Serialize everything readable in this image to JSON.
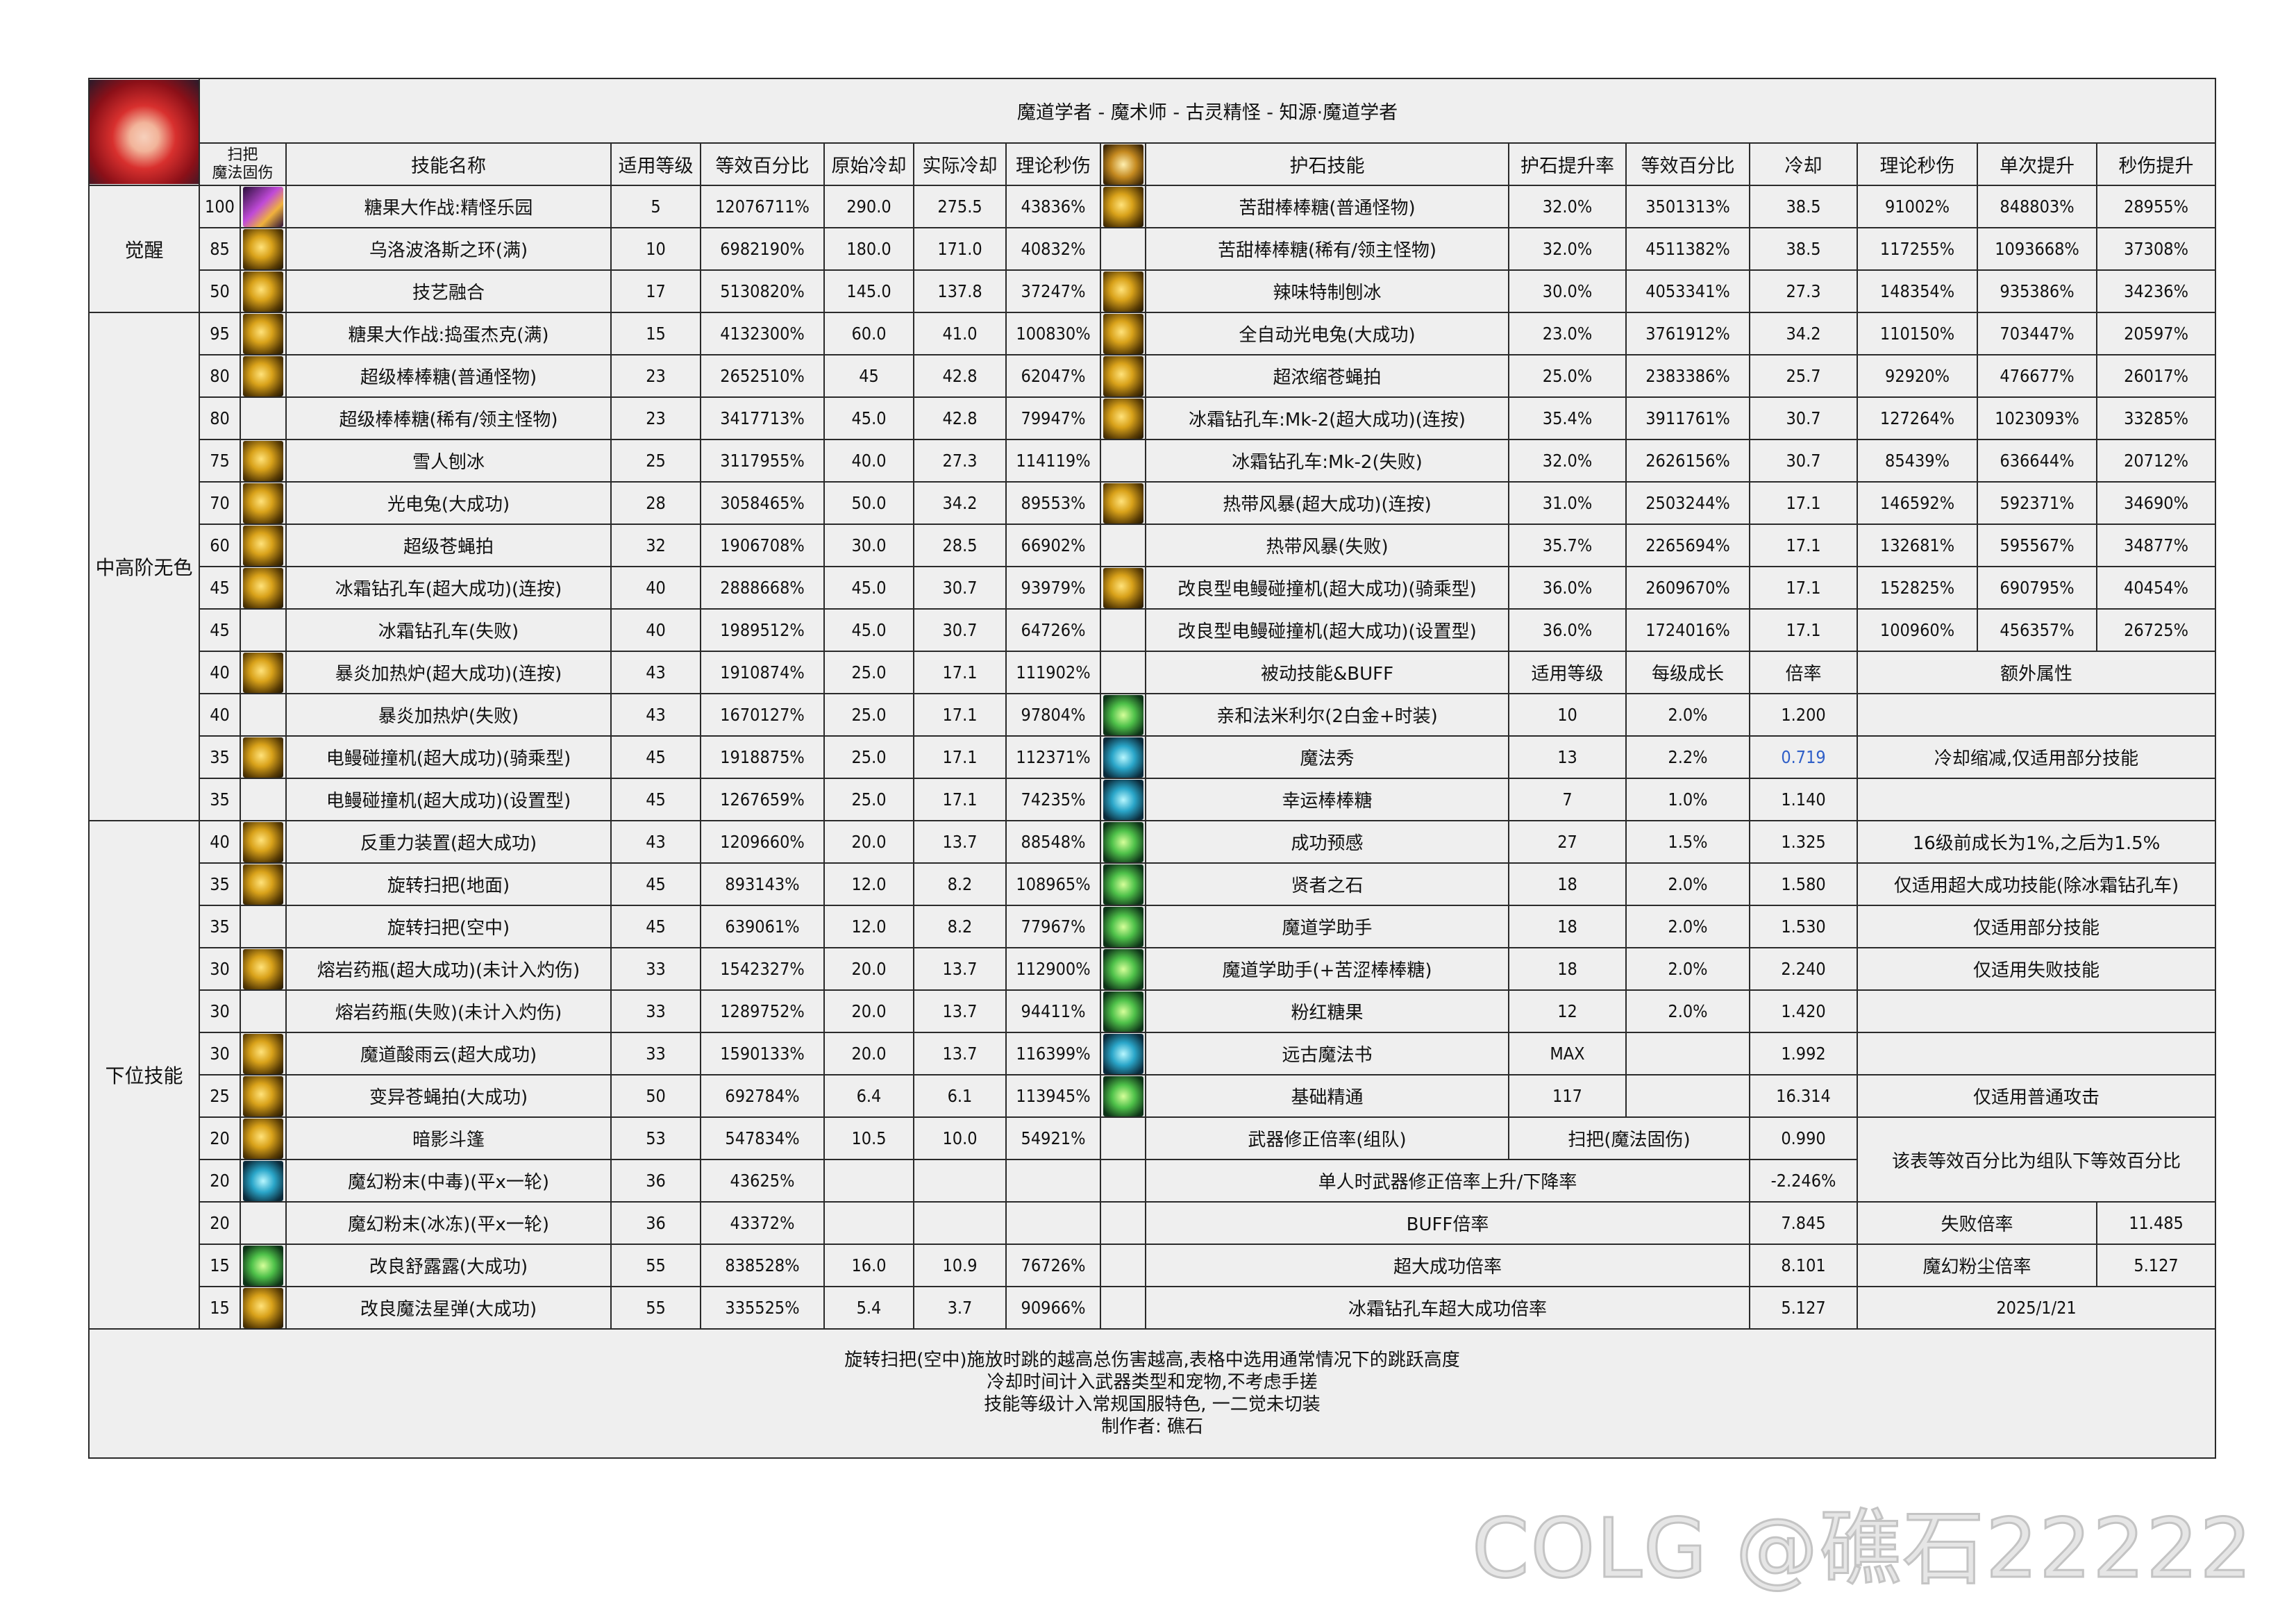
{
  "title": "魔道学者 - 魔术师 - 古灵精怪 - 知源·魔道学者",
  "headers": {
    "broom": "扫把\n魔法固伤",
    "skill_name": "技能名称",
    "level": "适用等级",
    "equiv_pct": "等效百分比",
    "orig_cd": "原始冷却",
    "actual_cd": "实际冷却",
    "theory_dps": "理论秒伤",
    "talisman_skill": "护石技能",
    "talisman_rate": "护石提升率",
    "talisman_pct": "等效百分比",
    "talisman_cd": "冷却",
    "talisman_dps": "理论秒伤",
    "single_up": "单次提升",
    "dps_up": "秒伤提升"
  },
  "groups": [
    {
      "label": "觉醒",
      "rows": 3
    },
    {
      "label": "中高阶无色",
      "rows": 12
    },
    {
      "label": "下位技能",
      "rows": 12
    }
  ],
  "skills": [
    {
      "broom": "100",
      "icon": "purple",
      "name": "糖果大作战:精怪乐园",
      "level": "5",
      "pct": "12076711%",
      "orig_cd": "290.0",
      "cd": "275.5",
      "dps": "43836%"
    },
    {
      "broom": "85",
      "icon": "gold",
      "name": "乌洛波洛斯之环(满)",
      "level": "10",
      "pct": "6982190%",
      "orig_cd": "180.0",
      "cd": "171.0",
      "dps": "40832%"
    },
    {
      "broom": "50",
      "icon": "gold",
      "name": "技艺融合",
      "level": "17",
      "pct": "5130820%",
      "orig_cd": "145.0",
      "cd": "137.8",
      "dps": "37247%"
    },
    {
      "broom": "95",
      "icon": "gold",
      "name": "糖果大作战:捣蛋杰克(满)",
      "level": "15",
      "pct": "4132300%",
      "orig_cd": "60.0",
      "cd": "41.0",
      "dps": "100830%"
    },
    {
      "broom": "80",
      "icon": "gold",
      "name": "超级棒棒糖(普通怪物)",
      "level": "23",
      "pct": "2652510%",
      "orig_cd": "45",
      "cd": "42.8",
      "dps": "62047%"
    },
    {
      "broom": "80",
      "icon": "",
      "name": "超级棒棒糖(稀有/领主怪物)",
      "level": "23",
      "pct": "3417713%",
      "orig_cd": "45.0",
      "cd": "42.8",
      "dps": "79947%"
    },
    {
      "broom": "75",
      "icon": "gold",
      "name": "雪人刨冰",
      "level": "25",
      "pct": "3117955%",
      "orig_cd": "40.0",
      "cd": "27.3",
      "dps": "114119%"
    },
    {
      "broom": "70",
      "icon": "gold",
      "name": "光电兔(大成功)",
      "level": "28",
      "pct": "3058465%",
      "orig_cd": "50.0",
      "cd": "34.2",
      "dps": "89553%"
    },
    {
      "broom": "60",
      "icon": "gold",
      "name": "超级苍蝇拍",
      "level": "32",
      "pct": "1906708%",
      "orig_cd": "30.0",
      "cd": "28.5",
      "dps": "66902%"
    },
    {
      "broom": "45",
      "icon": "gold",
      "name": "冰霜钻孔车(超大成功)(连按)",
      "level": "40",
      "pct": "2888668%",
      "orig_cd": "45.0",
      "cd": "30.7",
      "dps": "93979%"
    },
    {
      "broom": "45",
      "icon": "",
      "name": "冰霜钻孔车(失败)",
      "level": "40",
      "pct": "1989512%",
      "orig_cd": "45.0",
      "cd": "30.7",
      "dps": "64726%"
    },
    {
      "broom": "40",
      "icon": "gold",
      "name": "暴炎加热炉(超大成功)(连按)",
      "level": "43",
      "pct": "1910874%",
      "orig_cd": "25.0",
      "cd": "17.1",
      "dps": "111902%"
    },
    {
      "broom": "40",
      "icon": "",
      "name": "暴炎加热炉(失败)",
      "level": "43",
      "pct": "1670127%",
      "orig_cd": "25.0",
      "cd": "17.1",
      "dps": "97804%"
    },
    {
      "broom": "35",
      "icon": "gold",
      "name": "电鳗碰撞机(超大成功)(骑乘型)",
      "level": "45",
      "pct": "1918875%",
      "orig_cd": "25.0",
      "cd": "17.1",
      "dps": "112371%"
    },
    {
      "broom": "35",
      "icon": "",
      "name": "电鳗碰撞机(超大成功)(设置型)",
      "level": "45",
      "pct": "1267659%",
      "orig_cd": "25.0",
      "cd": "17.1",
      "dps": "74235%"
    },
    {
      "broom": "40",
      "icon": "gold",
      "name": "反重力装置(超大成功)",
      "level": "43",
      "pct": "1209660%",
      "orig_cd": "20.0",
      "cd": "13.7",
      "dps": "88548%"
    },
    {
      "broom": "35",
      "icon": "gold",
      "name": "旋转扫把(地面)",
      "level": "45",
      "pct": "893143%",
      "orig_cd": "12.0",
      "cd": "8.2",
      "dps": "108965%"
    },
    {
      "broom": "35",
      "icon": "",
      "name": "旋转扫把(空中)",
      "level": "45",
      "pct": "639061%",
      "orig_cd": "12.0",
      "cd": "8.2",
      "dps": "77967%"
    },
    {
      "broom": "30",
      "icon": "gold",
      "name": "熔岩药瓶(超大成功)(未计入灼伤)",
      "level": "33",
      "pct": "1542327%",
      "orig_cd": "20.0",
      "cd": "13.7",
      "dps": "112900%"
    },
    {
      "broom": "30",
      "icon": "",
      "name": "熔岩药瓶(失败)(未计入灼伤)",
      "level": "33",
      "pct": "1289752%",
      "orig_cd": "20.0",
      "cd": "13.7",
      "dps": "94411%"
    },
    {
      "broom": "30",
      "icon": "gold",
      "name": "魔道酸雨云(超大成功)",
      "level": "33",
      "pct": "1590133%",
      "orig_cd": "20.0",
      "cd": "13.7",
      "dps": "116399%"
    },
    {
      "broom": "25",
      "icon": "gold",
      "name": "变异苍蝇拍(大成功)",
      "level": "50",
      "pct": "692784%",
      "orig_cd": "6.4",
      "cd": "6.1",
      "dps": "113945%"
    },
    {
      "broom": "20",
      "icon": "gold",
      "name": "暗影斗篷",
      "level": "53",
      "pct": "547834%",
      "orig_cd": "10.5",
      "cd": "10.0",
      "dps": "54921%"
    },
    {
      "broom": "20",
      "icon": "teal",
      "name": "魔幻粉末(中毒)(平x一轮)",
      "level": "36",
      "pct": "43625%",
      "orig_cd": "",
      "cd": "",
      "dps": ""
    },
    {
      "broom": "20",
      "icon": "",
      "name": "魔幻粉末(冰冻)(平x一轮)",
      "level": "36",
      "pct": "43372%",
      "orig_cd": "",
      "cd": "",
      "dps": ""
    },
    {
      "broom": "15",
      "icon": "green",
      "name": "改良舒露露(大成功)",
      "level": "55",
      "pct": "838528%",
      "orig_cd": "16.0",
      "cd": "10.9",
      "dps": "76726%"
    },
    {
      "broom": "15",
      "icon": "gold",
      "name": "改良魔法星弹(大成功)",
      "level": "55",
      "pct": "335525%",
      "orig_cd": "5.4",
      "cd": "3.7",
      "dps": "90966%"
    }
  ],
  "talismans": [
    {
      "icon": "gold",
      "name": "苦甜棒棒糖(普通怪物)",
      "rate": "32.0%",
      "pct": "3501313%",
      "cd": "38.5",
      "dps": "91002%",
      "single": "848803%",
      "dps_up": "28955%"
    },
    {
      "icon": "",
      "name": "苦甜棒棒糖(稀有/领主怪物)",
      "rate": "32.0%",
      "pct": "4511382%",
      "cd": "38.5",
      "dps": "117255%",
      "single": "1093668%",
      "dps_up": "37308%"
    },
    {
      "icon": "gold",
      "name": "辣味特制刨冰",
      "rate": "30.0%",
      "pct": "4053341%",
      "cd": "27.3",
      "dps": "148354%",
      "single": "935386%",
      "dps_up": "34236%"
    },
    {
      "icon": "gold",
      "name": "全自动光电兔(大成功)",
      "rate": "23.0%",
      "pct": "3761912%",
      "cd": "34.2",
      "dps": "110150%",
      "single": "703447%",
      "dps_up": "20597%"
    },
    {
      "icon": "gold",
      "name": "超浓缩苍蝇拍",
      "rate": "25.0%",
      "pct": "2383386%",
      "cd": "25.7",
      "dps": "92920%",
      "single": "476677%",
      "dps_up": "26017%"
    },
    {
      "icon": "gold",
      "name": "冰霜钻孔车:Mk-2(超大成功)(连按)",
      "rate": "35.4%",
      "pct": "3911761%",
      "cd": "30.7",
      "dps": "127264%",
      "single": "1023093%",
      "dps_up": "33285%"
    },
    {
      "icon": "",
      "name": "冰霜钻孔车:Mk-2(失败)",
      "rate": "32.0%",
      "pct": "2626156%",
      "cd": "30.7",
      "dps": "85439%",
      "single": "636644%",
      "dps_up": "20712%"
    },
    {
      "icon": "gold",
      "name": "热带风暴(超大成功)(连按)",
      "rate": "31.0%",
      "pct": "2503244%",
      "cd": "17.1",
      "dps": "146592%",
      "single": "592371%",
      "dps_up": "34690%"
    },
    {
      "icon": "",
      "name": "热带风暴(失败)",
      "rate": "35.7%",
      "pct": "2265694%",
      "cd": "17.1",
      "dps": "132681%",
      "single": "595567%",
      "dps_up": "34877%"
    },
    {
      "icon": "gold",
      "name": "改良型电鳗碰撞机(超大成功)(骑乘型)",
      "rate": "36.0%",
      "pct": "2609670%",
      "cd": "17.1",
      "dps": "152825%",
      "single": "690795%",
      "dps_up": "40454%"
    },
    {
      "icon": "",
      "name": "改良型电鳗碰撞机(超大成功)(设置型)",
      "rate": "36.0%",
      "pct": "1724016%",
      "cd": "17.1",
      "dps": "100960%",
      "single": "456357%",
      "dps_up": "26725%"
    }
  ],
  "passive_headers": {
    "name": "被动技能&BUFF",
    "level": "适用等级",
    "growth": "每级成长",
    "rate": "倍率",
    "extra": "额外属性"
  },
  "passives": [
    {
      "icon": "green",
      "name": "亲和法米利尔(2白金+时装)",
      "level": "10",
      "growth": "2.0%",
      "rate": "1.200",
      "extra": ""
    },
    {
      "icon": "teal",
      "name": "魔法秀",
      "level": "13",
      "growth": "2.2%",
      "rate": "0.719",
      "rate_color": "#2f5fc8",
      "extra": "冷却缩减,仅适用部分技能"
    },
    {
      "icon": "teal",
      "name": "幸运棒棒糖",
      "level": "7",
      "growth": "1.0%",
      "rate": "1.140",
      "extra": ""
    },
    {
      "icon": "green",
      "name": "成功预感",
      "level": "27",
      "growth": "1.5%",
      "rate": "1.325",
      "extra": "16级前成长为1%,之后为1.5%"
    },
    {
      "icon": "green",
      "name": "贤者之石",
      "level": "18",
      "growth": "2.0%",
      "rate": "1.580",
      "extra": "仅适用超大成功技能(除冰霜钻孔车)"
    },
    {
      "icon": "green",
      "name": "魔道学助手",
      "level": "18",
      "growth": "2.0%",
      "rate": "1.530",
      "extra": "仅适用部分技能"
    },
    {
      "icon": "green",
      "name": "魔道学助手(+苦涩棒棒糖)",
      "level": "18",
      "growth": "2.0%",
      "rate": "2.240",
      "extra": "仅适用失败技能"
    },
    {
      "icon": "green",
      "name": "粉红糖果",
      "level": "12",
      "growth": "2.0%",
      "rate": "1.420",
      "extra": ""
    },
    {
      "icon": "teal",
      "name": "远古魔法书",
      "level": "MAX",
      "growth": "",
      "rate": "1.992",
      "extra": ""
    },
    {
      "icon": "green",
      "name": "基础精通",
      "level": "117",
      "growth": "",
      "rate": "16.314",
      "extra": "仅适用普通攻击"
    }
  ],
  "summary": {
    "weapon_label": "武器修正倍率(组队)",
    "weapon_type": "扫把(魔法固伤)",
    "weapon_rate": "0.990",
    "note_team": "该表等效百分比为组队下等效百分比",
    "solo_label": "单人时武器修正倍率上升/下降率",
    "solo_rate": "-2.246%",
    "buff_label": "BUFF倍率",
    "buff_rate": "7.845",
    "fail_label": "失败倍率",
    "fail_rate": "11.485",
    "great_label": "超大成功倍率",
    "great_rate": "8.101",
    "dust_label": "魔幻粉尘倍率",
    "dust_rate": "5.127",
    "drill_label": "冰霜钻孔车超大成功倍率",
    "drill_rate": "5.127",
    "date": "2025/1/21"
  },
  "notes": [
    "旋转扫把(空中)施放时跳的越高总伤害越高,表格中选用通常情况下的跳跃高度",
    "冷却时间计入武器类型和宠物,不考虑手搓",
    "技能等级计入常规国服特色, 一二觉未切装",
    "制作者: 礁石"
  ],
  "watermark": "COLG @礁石22222"
}
